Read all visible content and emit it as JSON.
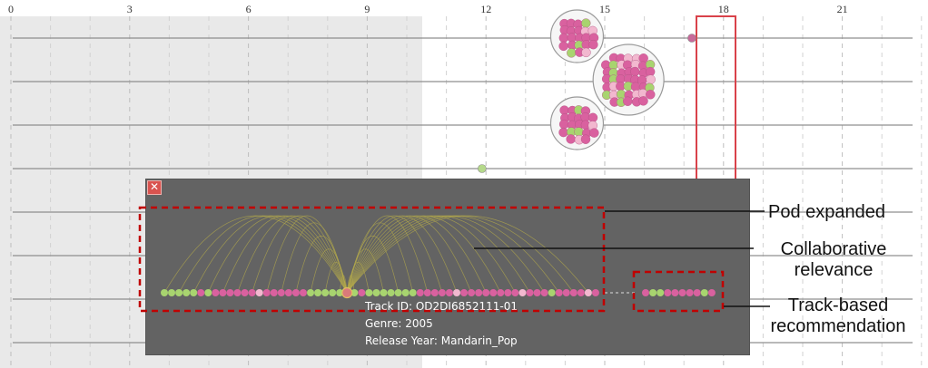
{
  "timeline": {
    "tick_labels": [
      "0",
      "3",
      "6",
      "9",
      "12",
      "15",
      "18",
      "21"
    ],
    "shaded_region": "0–10.5",
    "highlighted_column": "18",
    "lanes": 8,
    "pods": [
      {
        "lane": 0,
        "x": 14.3,
        "size": "medium"
      },
      {
        "lane": 1,
        "x": 15.6,
        "size": "large"
      },
      {
        "lane": 2,
        "x": 14.3,
        "size": "medium"
      }
    ],
    "single_dots": [
      {
        "lane": 0,
        "x": 17.2,
        "color": "#c76a9a"
      },
      {
        "lane": 3,
        "x": 11.9,
        "color": "#b5d98a"
      }
    ]
  },
  "colors": {
    "background_shade": "#e9e9e9",
    "panel": "#636363",
    "pink": "#d9619f",
    "light_pink": "#f2b8cf",
    "green": "#a8d46f",
    "highlight_red": "#d9424a",
    "dashed_box": "#c00000"
  },
  "panel": {
    "close_icon": "x-icon",
    "dot_sequence": "gggggpgpppppppppppppgggggggpgggggggppppppppppppppppppgpppppp",
    "rec_sequence": "pggpppppgp",
    "selected_index": 25,
    "track_id": "Track ID: OD2DI6852111-01",
    "genre": "Genre: 2005",
    "release_year": "Release Year: Mandarin_Pop"
  },
  "annotations": {
    "pod_expanded": "Pod expanded",
    "collaborative_relevance": [
      "Collaborative",
      "relevance"
    ],
    "track_based_recommendation": [
      "Track-based",
      "recommendation"
    ]
  }
}
